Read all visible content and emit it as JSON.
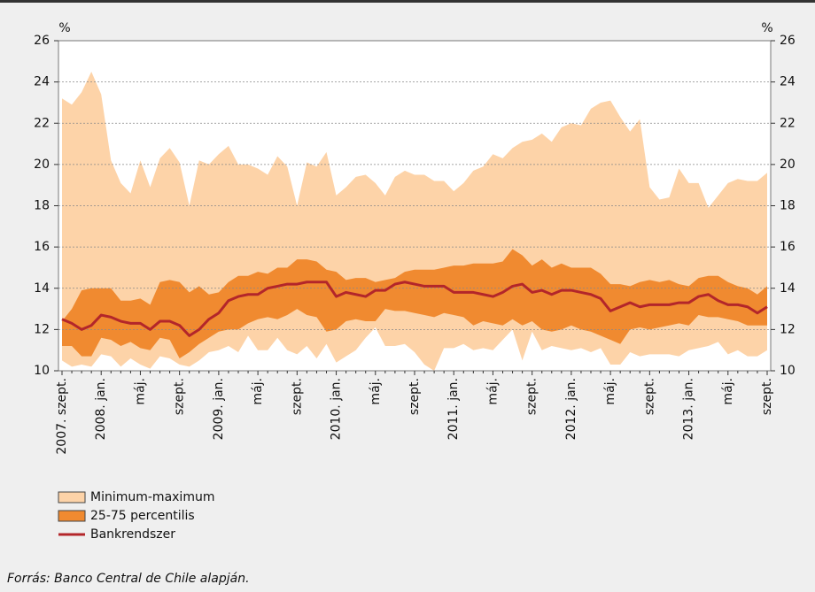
{
  "chart_data": {
    "type": "range-line",
    "y_unit": "%",
    "source": "Forrás: Banco Central de Chile alapján.",
    "categories": [
      "2007. szept.",
      null,
      null,
      null,
      "2008. jan.",
      null,
      null,
      null,
      "máj.",
      null,
      null,
      null,
      "szept.",
      null,
      null,
      null,
      "2009. jan.",
      null,
      null,
      null,
      "máj.",
      null,
      null,
      null,
      "szept.",
      null,
      null,
      null,
      "2010. jan.",
      null,
      null,
      null,
      "máj.",
      null,
      null,
      null,
      "szept.",
      null,
      null,
      null,
      "2011. jan.",
      null,
      null,
      null,
      "máj.",
      null,
      null,
      null,
      "szept.",
      null,
      null,
      null,
      "2012. jan.",
      null,
      null,
      null,
      "máj.",
      null,
      null,
      null,
      "szept.",
      null,
      null,
      null,
      "2013. jan.",
      null,
      null,
      null,
      "máj.",
      null,
      null,
      null,
      "szept."
    ],
    "ylim": [
      10,
      26
    ],
    "yticks": [
      10,
      12,
      14,
      16,
      18,
      20,
      22,
      24,
      26
    ],
    "grid": true,
    "series": [
      {
        "name": "Minimum-maximum",
        "kind": "range",
        "color": "#fdd3a8",
        "low": [
          10.5,
          10.2,
          10.3,
          10.2,
          10.8,
          10.7,
          10.2,
          10.6,
          10.3,
          10.1,
          10.7,
          10.6,
          10.3,
          10.2,
          10.5,
          10.9,
          11.0,
          11.2,
          10.9,
          11.7,
          11.0,
          11.0,
          11.6,
          11.0,
          10.8,
          11.2,
          10.6,
          11.3,
          10.4,
          10.7,
          11.0,
          11.6,
          12.1,
          11.2,
          11.2,
          11.3,
          10.9,
          10.3,
          10.0,
          11.1,
          11.1,
          11.3,
          11.0,
          11.1,
          11.0,
          11.5,
          12.0,
          10.5,
          11.9,
          11.0,
          11.2,
          11.1,
          11.0,
          11.1,
          10.9,
          11.1,
          10.3,
          10.3,
          10.9,
          10.7,
          10.8,
          10.8,
          10.8,
          10.7,
          11.0,
          11.1,
          11.2,
          11.4,
          10.8,
          11.0,
          10.7,
          10.7,
          11.0
        ],
        "high": [
          23.2,
          22.9,
          23.5,
          24.5,
          23.4,
          20.2,
          19.1,
          18.6,
          20.2,
          18.9,
          20.3,
          20.8,
          20.1,
          18.0,
          20.2,
          20.0,
          20.5,
          20.9,
          20.0,
          20.0,
          19.8,
          19.5,
          20.4,
          19.9,
          18.0,
          20.1,
          19.9,
          20.6,
          18.5,
          18.9,
          19.4,
          19.5,
          19.1,
          18.5,
          19.4,
          19.7,
          19.5,
          19.5,
          19.2,
          19.2,
          18.7,
          19.1,
          19.7,
          19.9,
          20.5,
          20.3,
          20.8,
          21.1,
          21.2,
          21.5,
          21.1,
          21.8,
          22.0,
          21.9,
          22.7,
          23.0,
          23.1,
          22.3,
          21.6,
          22.2,
          18.9,
          18.3,
          18.4,
          19.8,
          19.1,
          19.1,
          17.9,
          18.5,
          19.1,
          19.3,
          19.2,
          19.2,
          19.6
        ]
      },
      {
        "name": "25-75 percentilis",
        "kind": "range",
        "color": "#f08a30",
        "low": [
          11.2,
          11.2,
          10.7,
          10.7,
          11.6,
          11.5,
          11.2,
          11.4,
          11.1,
          11.0,
          11.6,
          11.5,
          10.6,
          10.9,
          11.3,
          11.6,
          11.9,
          12.0,
          12.0,
          12.3,
          12.5,
          12.6,
          12.5,
          12.7,
          13.0,
          12.7,
          12.6,
          11.9,
          12.0,
          12.4,
          12.5,
          12.4,
          12.4,
          13.0,
          12.9,
          12.9,
          12.8,
          12.7,
          12.6,
          12.8,
          12.7,
          12.6,
          12.2,
          12.4,
          12.3,
          12.2,
          12.5,
          12.2,
          12.4,
          12.0,
          11.9,
          12.0,
          12.2,
          12.0,
          11.9,
          11.7,
          11.5,
          11.3,
          12.0,
          12.1,
          12.0,
          12.1,
          12.2,
          12.3,
          12.2,
          12.7,
          12.6,
          12.6,
          12.5,
          12.4,
          12.2,
          12.2,
          12.2
        ],
        "high": [
          12.4,
          13.0,
          13.9,
          14.0,
          14.0,
          14.0,
          13.4,
          13.4,
          13.5,
          13.2,
          14.3,
          14.4,
          14.3,
          13.8,
          14.1,
          13.7,
          13.8,
          14.3,
          14.6,
          14.6,
          14.8,
          14.7,
          15.0,
          15.0,
          15.4,
          15.4,
          15.3,
          14.9,
          14.8,
          14.4,
          14.5,
          14.5,
          14.3,
          14.4,
          14.5,
          14.8,
          14.9,
          14.9,
          14.9,
          15.0,
          15.1,
          15.1,
          15.2,
          15.2,
          15.2,
          15.3,
          15.9,
          15.6,
          15.1,
          15.4,
          15.0,
          15.2,
          15.0,
          15.0,
          15.0,
          14.7,
          14.2,
          14.2,
          14.1,
          14.3,
          14.4,
          14.3,
          14.4,
          14.2,
          14.1,
          14.5,
          14.6,
          14.6,
          14.3,
          14.1,
          14.0,
          13.7,
          14.1
        ]
      },
      {
        "name": "Bankrendszer",
        "kind": "line",
        "color": "#b3262a",
        "values": [
          12.5,
          12.3,
          12.0,
          12.2,
          12.7,
          12.6,
          12.4,
          12.3,
          12.3,
          12.0,
          12.4,
          12.4,
          12.2,
          11.7,
          12.0,
          12.5,
          12.8,
          13.4,
          13.6,
          13.7,
          13.7,
          14.0,
          14.1,
          14.2,
          14.2,
          14.3,
          14.3,
          14.3,
          13.6,
          13.8,
          13.7,
          13.6,
          13.9,
          13.9,
          14.2,
          14.3,
          14.2,
          14.1,
          14.1,
          14.1,
          13.8,
          13.8,
          13.8,
          13.7,
          13.6,
          13.8,
          14.1,
          14.2,
          13.8,
          13.9,
          13.7,
          13.9,
          13.9,
          13.8,
          13.7,
          13.5,
          12.9,
          13.1,
          13.3,
          13.1,
          13.2,
          13.2,
          13.2,
          13.3,
          13.3,
          13.6,
          13.7,
          13.4,
          13.2,
          13.2,
          13.1,
          12.8,
          13.1
        ]
      }
    ]
  }
}
